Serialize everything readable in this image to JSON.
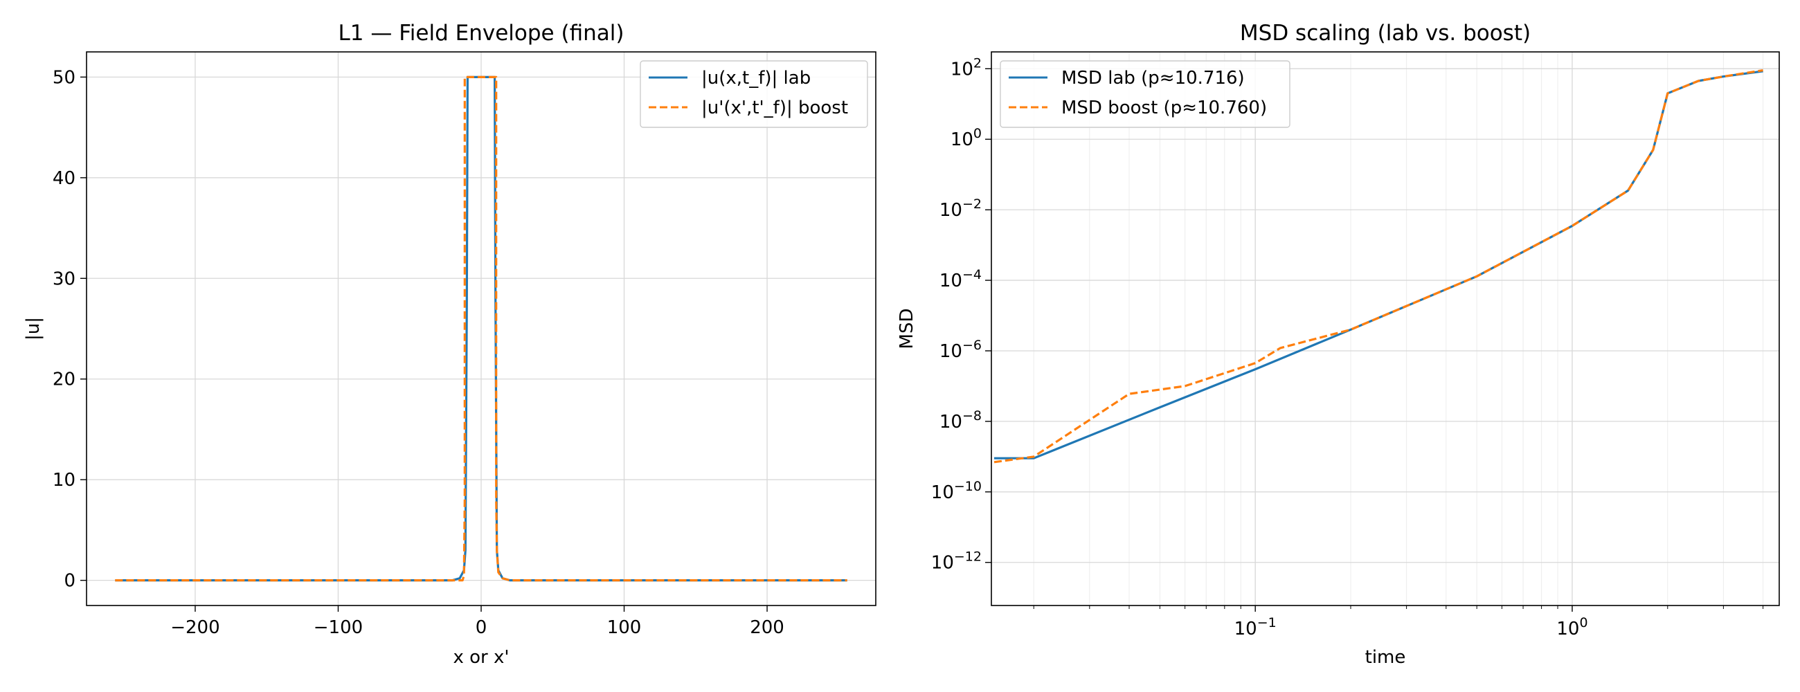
{
  "colors": {
    "lab": "#1f77b4",
    "boost": "#ff7f0e"
  },
  "chart_data": [
    {
      "type": "line",
      "title": "L1 — Field Envelope (final)",
      "xlabel": "x or x'",
      "ylabel": "|u|",
      "xlim": [
        -276,
        276
      ],
      "ylim": [
        -2.5,
        52.5
      ],
      "xticks": [
        -200,
        -100,
        0,
        100,
        200
      ],
      "xtick_labels": [
        "−200",
        "−100",
        "0",
        "100",
        "200"
      ],
      "yticks": [
        0,
        10,
        20,
        30,
        40,
        50
      ],
      "ytick_labels": [
        "0",
        "10",
        "20",
        "30",
        "40",
        "50"
      ],
      "grid": true,
      "legend_position": "top-right",
      "series": [
        {
          "name": "|u(x,t_f)| lab",
          "style": "solid",
          "x": [
            -256,
            -20,
            -15,
            -12,
            -11,
            -10,
            -9.5,
            -8.5,
            8.5,
            9.5,
            10,
            11,
            12,
            15,
            20,
            256
          ],
          "y": [
            0,
            0,
            0.2,
            1.0,
            3.0,
            28.0,
            50,
            50,
            50,
            50,
            28.0,
            3.0,
            1.0,
            0.2,
            0,
            0
          ]
        },
        {
          "name": "|u'(x',t'_f)| boost",
          "style": "dashed",
          "x": [
            -256,
            -13,
            -12,
            -11.5,
            -11.5,
            10.5,
            10.5,
            11,
            12,
            15,
            20,
            256
          ],
          "y": [
            0,
            0,
            0.5,
            8,
            50,
            50,
            8,
            3,
            0.8,
            0.2,
            0,
            0
          ]
        }
      ]
    },
    {
      "type": "line",
      "title": "MSD scaling (lab vs. boost)",
      "xlabel": "time",
      "ylabel": "MSD",
      "xscale": "log",
      "yscale": "log",
      "xlim": [
        0.0147,
        4.5
      ],
      "ylim": [
        6e-14,
        300.0
      ],
      "xtick_major": [
        {
          "value": 0.1,
          "base": "10",
          "exp": "−1"
        },
        {
          "value": 1,
          "base": "10",
          "exp": "0"
        }
      ],
      "ytick_major": [
        {
          "value": 1e-12,
          "base": "10",
          "exp": "−12"
        },
        {
          "value": 1e-10,
          "base": "10",
          "exp": "−10"
        },
        {
          "value": 1e-08,
          "base": "10",
          "exp": "−8"
        },
        {
          "value": 1e-06,
          "base": "10",
          "exp": "−6"
        },
        {
          "value": 0.0001,
          "base": "10",
          "exp": "−4"
        },
        {
          "value": 0.01,
          "base": "10",
          "exp": "−2"
        },
        {
          "value": 1,
          "base": "10",
          "exp": "0"
        },
        {
          "value": 100,
          "base": "10",
          "exp": "2"
        }
      ],
      "grid": true,
      "legend_position": "top-left",
      "series": [
        {
          "name": "MSD lab (p≈10.716)",
          "style": "solid",
          "x": [
            0.015,
            0.02,
            0.05,
            0.1,
            0.2,
            0.5,
            1.0,
            1.5,
            1.8,
            2.0,
            2.5,
            3.0,
            4.0
          ],
          "y": [
            9e-10,
            9e-10,
            2.5e-08,
            3e-07,
            4e-06,
            0.00013,
            0.0035,
            0.035,
            0.5,
            20,
            45,
            60,
            85
          ]
        },
        {
          "name": "MSD boost (p≈10.760)",
          "style": "dashed",
          "x": [
            0.015,
            0.02,
            0.04,
            0.06,
            0.1,
            0.12,
            0.2,
            0.5,
            1.0,
            1.5,
            1.8,
            2.0,
            2.5,
            3.0,
            3.5,
            4.0
          ],
          "y": [
            7e-10,
            1e-09,
            6e-08,
            1e-07,
            4.5e-07,
            1.2e-06,
            4e-06,
            0.00013,
            0.0035,
            0.035,
            0.5,
            20,
            45,
            60,
            75,
            90
          ]
        }
      ]
    }
  ]
}
